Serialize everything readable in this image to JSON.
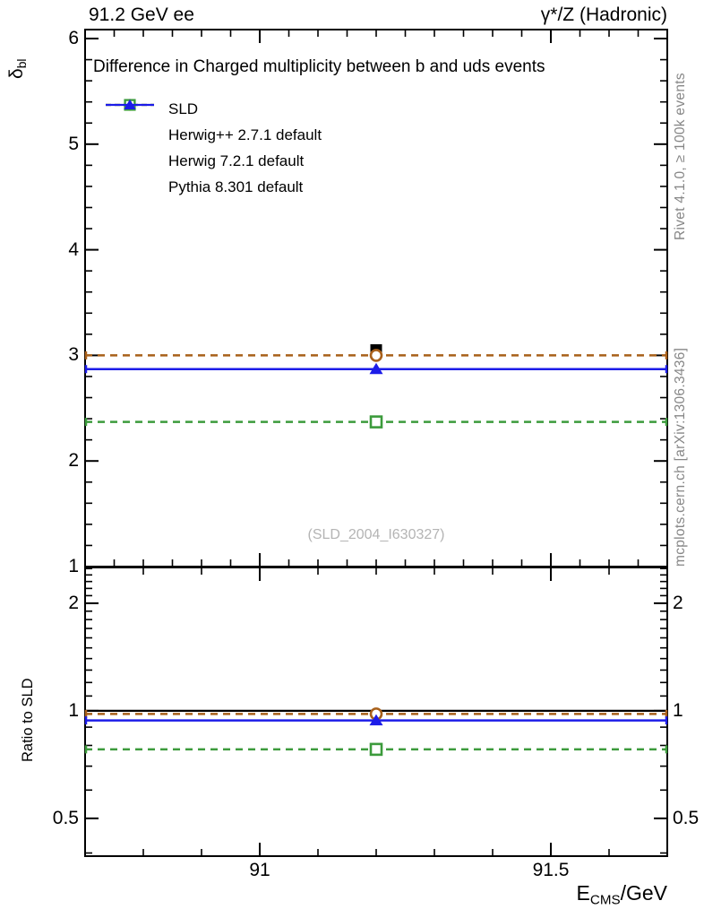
{
  "header": {
    "left": "91.2 GeV ee",
    "right": "γ*/Z (Hadronic)"
  },
  "title": "Difference in Charged multiplicity between b and uds events",
  "watermark": "(SLD_2004_I630327)",
  "side_notes": {
    "rivet": "Rivet 4.1.0, ≥ 100k events",
    "mcplots": "mcplots.cern.ch [arXiv:1306.3436]"
  },
  "colors": {
    "data": "#000000",
    "herwigpp": "#a8601a",
    "herwig7": "#3c9b3c",
    "pythia": "#1c1ce8",
    "note_gray": "#878787",
    "watermark_gray": "#b4b4b4"
  },
  "chart_data": {
    "type": "line",
    "title": "Difference in Charged multiplicity between b and uds events",
    "x_axis": {
      "min": 90.7,
      "max": 91.7,
      "major_ticks": [
        91,
        91.5
      ],
      "minor_step_main": 0.05,
      "minor_step_ratio": 0.1,
      "label_base": "E",
      "label_sub": "CMS",
      "label_suffix": "/GeV"
    },
    "main_panel": {
      "ylabel_base": "δ",
      "ylabel_sub": "bl",
      "scale": "linear",
      "ymin": 1,
      "ymax": 6.085,
      "major_ticks": [
        1,
        2,
        3,
        4,
        5,
        6
      ],
      "minor_step": 0.2,
      "grid": false
    },
    "ratio_panel": {
      "ylabel": "Ratio to SLD",
      "scale": "log",
      "ymin": 0.392,
      "ymax": 2.518,
      "major_ticks": [
        0.5,
        1,
        2
      ],
      "minor_ticks": [
        0.4,
        0.6,
        0.7,
        0.8,
        0.9,
        1.1,
        1.2,
        1.3,
        1.4,
        1.5,
        1.6,
        1.7,
        1.8,
        1.9,
        2.1,
        2.2,
        2.3,
        2.4,
        2.5
      ],
      "reference_line": 1.0
    },
    "bin": {
      "x_center": 91.2,
      "x_low": 90.7,
      "x_high": 91.7
    },
    "series": [
      {
        "name": "SLD",
        "role": "data",
        "marker": "filled-square",
        "color": "#000000",
        "line": "none",
        "x": 91.2,
        "y": 3.05,
        "ratio": 1.0
      },
      {
        "name": "Herwig++ 2.7.1 default",
        "role": "mc",
        "marker": "open-circle",
        "color": "#a8601a",
        "line": "dashed",
        "x": 91.2,
        "y": 3.0,
        "ratio": 0.98
      },
      {
        "name": "Herwig 7.2.1 default",
        "role": "mc",
        "marker": "open-square",
        "color": "#3c9b3c",
        "line": "dashed",
        "x": 91.2,
        "y": 2.37,
        "ratio": 0.78
      },
      {
        "name": "Pythia 8.301 default",
        "role": "mc",
        "marker": "filled-triangle",
        "color": "#1c1ce8",
        "line": "solid",
        "x": 91.2,
        "y": 2.87,
        "ratio": 0.94
      }
    ],
    "legend_position": "top-left"
  }
}
